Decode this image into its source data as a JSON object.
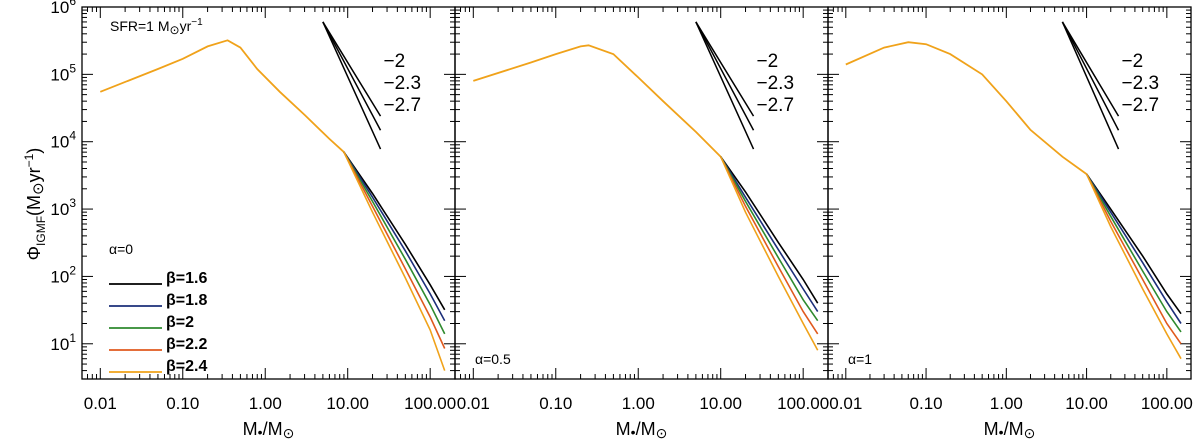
{
  "figure": {
    "ylabel": "Φ_IGMF(M_⊙yr⁻¹)",
    "ylabel_main": "Φ",
    "ylabel_sub": "IGMF",
    "ylabel_unit": "(M",
    "ylabel_unit2": "yr",
    "ylabel_exp": "−1",
    "ylabel_close": ")",
    "xlabel_prefix": "M",
    "xlabel_mid": "/M",
    "sun_symbol": "⊙",
    "sfr_text": "SFR=1 M",
    "sfr_unit": "yr",
    "sfr_exp": "−1",
    "x_tick_labels": [
      "0.01",
      "0.10",
      "1.00",
      "10.00",
      "100.00"
    ],
    "y_tick_base": "10",
    "y_tick_exponents": [
      "1",
      "2",
      "3",
      "4",
      "5",
      "6"
    ],
    "slope_guides": [
      {
        "label": "−2",
        "slope": -2.0
      },
      {
        "label": "−2.3",
        "slope": -2.3
      },
      {
        "label": "−2.7",
        "slope": -2.7
      }
    ],
    "legend_title": "α=0",
    "colors": {
      "beta_1_6": "#000000",
      "beta_1_8": "#1c2f7a",
      "beta_2": "#2e8a2e",
      "beta_2_2": "#e05a1e",
      "beta_2_4": "#f0a21a"
    }
  },
  "chart_data": [
    {
      "type": "line",
      "panel_label": "α=0",
      "xscale": "log",
      "yscale": "log",
      "xlim": [
        0.006,
        200
      ],
      "ylim": [
        3,
        1000000
      ],
      "xlabel": "M•/M⊙",
      "ylabel": "Φ_IGMF(M⊙yr⁻¹)",
      "annotation": "SFR=1 M⊙yr⁻¹",
      "common_curve": {
        "x": [
          0.01,
          0.05,
          0.1,
          0.2,
          0.35,
          0.5,
          0.8,
          1.5,
          3,
          6,
          9
        ],
        "y": [
          55000,
          120000,
          170000,
          260000,
          320000,
          250000,
          120000,
          55000,
          25000,
          11000,
          7000
        ]
      },
      "series": [
        {
          "name": "β=1.6",
          "x": [
            9,
            20,
            50,
            100,
            150
          ],
          "y": [
            7000,
            1700,
            300,
            75,
            32
          ]
        },
        {
          "name": "β=1.8",
          "x": [
            9,
            20,
            50,
            100,
            150
          ],
          "y": [
            7000,
            1500,
            240,
            55,
            22
          ]
        },
        {
          "name": "β=2",
          "x": [
            9,
            20,
            50,
            100,
            150
          ],
          "y": [
            7000,
            1300,
            180,
            38,
            14
          ]
        },
        {
          "name": "β=2.2",
          "x": [
            9,
            20,
            50,
            100,
            150
          ],
          "y": [
            7000,
            1100,
            130,
            25,
            8.5
          ]
        },
        {
          "name": "β=2.4",
          "x": [
            9,
            20,
            50,
            100,
            150
          ],
          "y": [
            7000,
            900,
            95,
            16,
            4
          ]
        }
      ]
    },
    {
      "type": "line",
      "panel_label": "α=0.5",
      "xscale": "log",
      "yscale": "log",
      "xlim": [
        0.006,
        200
      ],
      "ylim": [
        3,
        1000000
      ],
      "xlabel": "M•/M⊙",
      "ylabel": "",
      "common_curve": {
        "x": [
          0.01,
          0.05,
          0.1,
          0.2,
          0.25,
          0.5,
          1,
          2,
          5,
          10
        ],
        "y": [
          80000,
          150000,
          200000,
          260000,
          270000,
          200000,
          90000,
          40000,
          14000,
          6000
        ]
      },
      "series": [
        {
          "name": "β=1.6",
          "x": [
            10,
            20,
            50,
            100,
            150
          ],
          "y": [
            6000,
            1800,
            320,
            90,
            40
          ]
        },
        {
          "name": "β=1.8",
          "x": [
            10,
            20,
            50,
            100,
            150
          ],
          "y": [
            6000,
            1500,
            250,
            65,
            30
          ]
        },
        {
          "name": "β=2",
          "x": [
            10,
            20,
            50,
            100,
            150
          ],
          "y": [
            6000,
            1300,
            190,
            45,
            22
          ]
        },
        {
          "name": "β=2.2",
          "x": [
            10,
            20,
            50,
            100,
            150
          ],
          "y": [
            6000,
            1100,
            140,
            30,
            14
          ]
        },
        {
          "name": "β=2.4",
          "x": [
            10,
            20,
            50,
            100,
            150
          ],
          "y": [
            6000,
            900,
            100,
            20,
            8
          ]
        }
      ]
    },
    {
      "type": "line",
      "panel_label": "α=1",
      "xscale": "log",
      "yscale": "log",
      "xlim": [
        0.006,
        200
      ],
      "ylim": [
        3,
        1000000
      ],
      "xlabel": "M•/M⊙",
      "ylabel": "",
      "common_curve": {
        "x": [
          0.01,
          0.03,
          0.06,
          0.1,
          0.2,
          0.5,
          1,
          2,
          5,
          10
        ],
        "y": [
          140000,
          250000,
          300000,
          280000,
          200000,
          100000,
          40000,
          15000,
          6000,
          3300
        ]
      },
      "series": [
        {
          "name": "β=1.6",
          "x": [
            10,
            20,
            50,
            100,
            150
          ],
          "y": [
            3300,
            1000,
            200,
            55,
            28
          ]
        },
        {
          "name": "β=1.8",
          "x": [
            10,
            20,
            50,
            100,
            150
          ],
          "y": [
            3300,
            900,
            160,
            42,
            20
          ]
        },
        {
          "name": "β=2",
          "x": [
            10,
            20,
            50,
            100,
            150
          ],
          "y": [
            3300,
            780,
            120,
            30,
            15
          ]
        },
        {
          "name": "β=2.2",
          "x": [
            10,
            20,
            50,
            100,
            150
          ],
          "y": [
            3300,
            660,
            90,
            20,
            10
          ]
        },
        {
          "name": "β=2.4",
          "x": [
            10,
            20,
            50,
            100,
            150
          ],
          "y": [
            3300,
            550,
            65,
            14,
            6
          ]
        }
      ]
    }
  ]
}
